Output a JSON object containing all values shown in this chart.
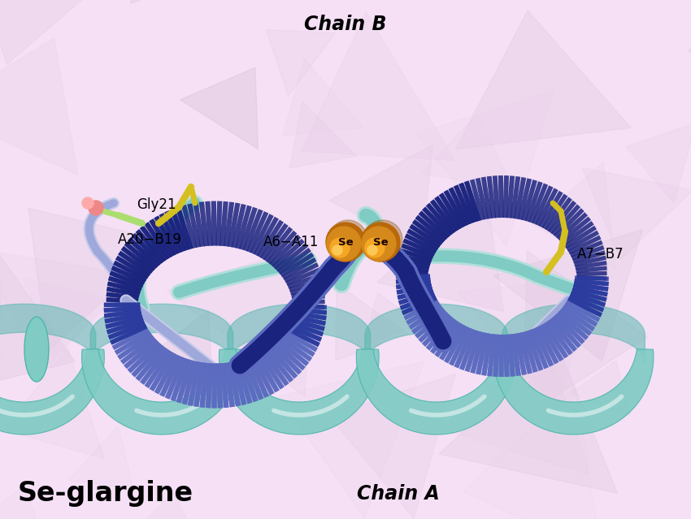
{
  "title": "Se-glargine",
  "chain_a_label": "Chain A",
  "chain_b_label": "Chain B",
  "bg_light": "#f5e0f5",
  "bg_dark": "#d8a8d8",
  "chain_a_dark": "#1a237e",
  "chain_a_mid": "#2a3a9e",
  "chain_a_light": "#5c6bc0",
  "chain_a_pale": "#9fa8da",
  "chain_b_dark": "#4db6ac",
  "chain_b_mid": "#6cc9c0",
  "chain_b_light": "#80cbc4",
  "chain_b_pale": "#b2dfdb",
  "chain_b_vlight": "#e0f7f5",
  "se_orange": "#d4891a",
  "se_gold": "#f5a623",
  "se_highlight": "#ffd060",
  "disulf_col": "#d4c020",
  "gly_green": "#aade70",
  "gly_red": "#ee8888",
  "bg_facets": [
    "#e8d0e8",
    "#dfc8df",
    "#ead2ea",
    "#e2cae2",
    "#ebd4eb",
    "#d9c2d9"
  ],
  "title_fontsize": 24,
  "chain_label_fontsize": 17,
  "annotation_fontsize": 12
}
